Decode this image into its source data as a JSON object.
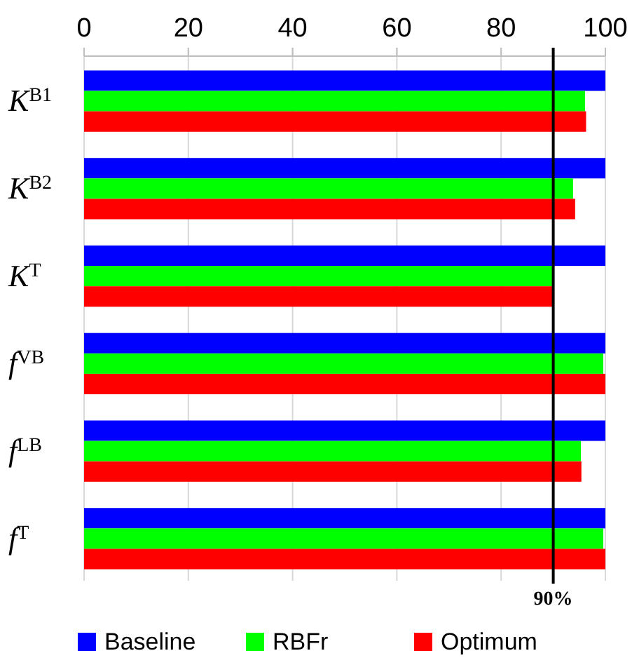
{
  "chart_data": {
    "type": "bar",
    "orientation": "horizontal",
    "categories": [
      "K$^{B1}$",
      "K$^{B2}$",
      "K$^{T}$",
      "f$^{VB}$",
      "f$^{LB}$",
      "f$^{T}$"
    ],
    "series": [
      {
        "name": "Baseline",
        "color": "#0000ff",
        "values": [
          100,
          100,
          100,
          100,
          100,
          100
        ]
      },
      {
        "name": "RBFr",
        "color": "#00ff00",
        "values": [
          96.1,
          93.8,
          90,
          99.6,
          95.3,
          99.6
        ]
      },
      {
        "name": "Optimum",
        "color": "#ff0000",
        "values": [
          96.3,
          94.2,
          90,
          100,
          95.4,
          100
        ]
      }
    ],
    "xlim": [
      0,
      100
    ],
    "xticks": [
      0,
      20,
      40,
      60,
      80,
      100
    ],
    "grid": "x",
    "legend": "bottom",
    "ref_lines": [
      {
        "axis": "x",
        "value": 90,
        "label": "90%",
        "color": "#000000"
      }
    ]
  }
}
